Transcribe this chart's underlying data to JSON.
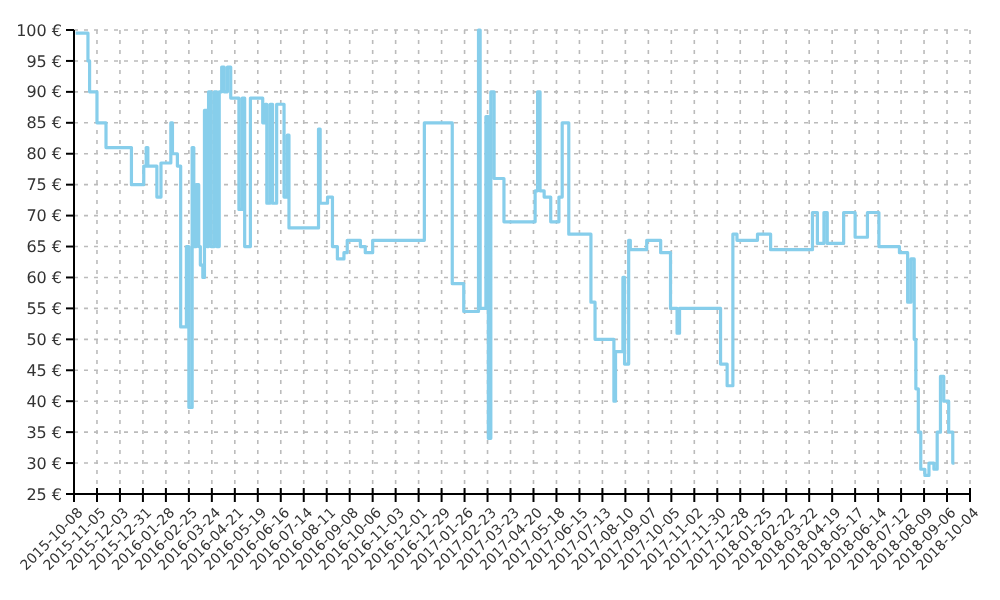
{
  "chart_data": {
    "type": "step",
    "xlim": [
      "2015-10-08",
      "2018-10-04"
    ],
    "xticks": [
      "2015-10-08",
      "2015-11-05",
      "2015-12-03",
      "2015-12-31",
      "2016-01-28",
      "2016-02-25",
      "2016-03-24",
      "2016-04-21",
      "2016-05-19",
      "2016-06-16",
      "2016-07-14",
      "2016-08-11",
      "2016-09-08",
      "2016-10-06",
      "2016-11-03",
      "2016-12-01",
      "2016-12-29",
      "2017-01-26",
      "2017-02-23",
      "2017-03-23",
      "2017-04-20",
      "2017-05-18",
      "2017-06-15",
      "2017-07-13",
      "2017-08-10",
      "2017-09-07",
      "2017-10-05",
      "2017-11-02",
      "2017-11-30",
      "2017-12-28",
      "2018-01-25",
      "2018-02-22",
      "2018-03-22",
      "2018-04-19",
      "2018-05-17",
      "2018-06-14",
      "2018-07-12",
      "2018-08-09",
      "2018-09-06",
      "2018-10-04"
    ],
    "ylim": [
      25,
      100
    ],
    "yticks": [
      {
        "value": 25,
        "label": "25 €"
      },
      {
        "value": 30,
        "label": "30 €"
      },
      {
        "value": 35,
        "label": "35 €"
      },
      {
        "value": 40,
        "label": "40 €"
      },
      {
        "value": 45,
        "label": "45 €"
      },
      {
        "value": 50,
        "label": "50 €"
      },
      {
        "value": 55,
        "label": "55 €"
      },
      {
        "value": 60,
        "label": "60 €"
      },
      {
        "value": 65,
        "label": "65 €"
      },
      {
        "value": 70,
        "label": "70 €"
      },
      {
        "value": 75,
        "label": "75 €"
      },
      {
        "value": 80,
        "label": "80 €"
      },
      {
        "value": 85,
        "label": "85 €"
      },
      {
        "value": 90,
        "label": "90 €"
      },
      {
        "value": 95,
        "label": "95 €"
      },
      {
        "value": 100,
        "label": "100 €"
      }
    ],
    "grid": true,
    "marker": "none",
    "line_style": "solid",
    "series": [
      {
        "color": "#87ceeb",
        "x": [
          "2015-10-10",
          "2015-10-25",
          "2015-10-27",
          "2015-11-05",
          "2015-11-16",
          "2015-12-17",
          "2016-01-01",
          "2016-01-04",
          "2016-01-06",
          "2016-01-17",
          "2016-01-22",
          "2016-02-03",
          "2016-02-05",
          "2016-02-11",
          "2016-02-15",
          "2016-02-22",
          "2016-02-25",
          "2016-02-29",
          "2016-03-02",
          "2016-03-05",
          "2016-03-08",
          "2016-03-10",
          "2016-03-13",
          "2016-03-15",
          "2016-03-18",
          "2016-03-20",
          "2016-03-23",
          "2016-03-27",
          "2016-03-30",
          "2016-04-02",
          "2016-04-05",
          "2016-04-08",
          "2016-04-12",
          "2016-04-16",
          "2016-04-26",
          "2016-04-30",
          "2016-05-03",
          "2016-05-10",
          "2016-05-25",
          "2016-05-28",
          "2016-05-30",
          "2016-06-03",
          "2016-06-06",
          "2016-06-11",
          "2016-06-20",
          "2016-06-24",
          "2016-06-26",
          "2016-08-01",
          "2016-08-03",
          "2016-08-12",
          "2016-08-18",
          "2016-08-24",
          "2016-09-01",
          "2016-09-05",
          "2016-09-21",
          "2016-09-27",
          "2016-10-06",
          "2016-12-08",
          "2017-01-11",
          "2017-01-25",
          "2017-02-12",
          "2017-02-14",
          "2017-02-21",
          "2017-02-24",
          "2017-02-27",
          "2017-03-03",
          "2017-03-15",
          "2017-04-22",
          "2017-04-25",
          "2017-04-28",
          "2017-05-03",
          "2017-05-11",
          "2017-05-21",
          "2017-05-25",
          "2017-06-02",
          "2017-06-29",
          "2017-07-04",
          "2017-07-27",
          "2017-07-29",
          "2017-08-07",
          "2017-08-09",
          "2017-08-14",
          "2017-08-16",
          "2017-09-05",
          "2017-09-22",
          "2017-10-04",
          "2017-10-12",
          "2017-10-15",
          "2017-12-04",
          "2017-12-12",
          "2017-12-19",
          "2017-12-24",
          "2018-01-18",
          "2018-02-03",
          "2018-03-26",
          "2018-04-01",
          "2018-04-09",
          "2018-04-13",
          "2018-05-03",
          "2018-05-17",
          "2018-06-01",
          "2018-06-15",
          "2018-07-10",
          "2018-07-20",
          "2018-07-24",
          "2018-07-28",
          "2018-07-30",
          "2018-08-02",
          "2018-08-05",
          "2018-08-10",
          "2018-08-15",
          "2018-08-21",
          "2018-08-25",
          "2018-08-29",
          "2018-09-02",
          "2018-09-08",
          "2018-09-13",
          "2018-09-15"
        ],
        "values": [
          99.5,
          95,
          90,
          85,
          81,
          75,
          78,
          81,
          78,
          73,
          78.5,
          85,
          80,
          78,
          52,
          65,
          39,
          81,
          65,
          75,
          65,
          62,
          60,
          87,
          65,
          90,
          65,
          90,
          65,
          90,
          94,
          90,
          94,
          89,
          71,
          89,
          65,
          89,
          85,
          88,
          72,
          88,
          72,
          88,
          73,
          83,
          68,
          84,
          72,
          73,
          65,
          63,
          64,
          66,
          65,
          64,
          66,
          85,
          59,
          54.5,
          100,
          55,
          86,
          34,
          90,
          76,
          69,
          74,
          90,
          74,
          73,
          69,
          73,
          85,
          67,
          56,
          50,
          40,
          48,
          60,
          46,
          66,
          64.5,
          66,
          64,
          55,
          51,
          55,
          46,
          42.5,
          67,
          66,
          67,
          64.5,
          70.5,
          65.5,
          70.5,
          65.5,
          70.5,
          66.5,
          70.5,
          65,
          64,
          56,
          63,
          50,
          42,
          35,
          29,
          28,
          30,
          29,
          35,
          44,
          40,
          35,
          30,
          30
        ]
      }
    ]
  }
}
